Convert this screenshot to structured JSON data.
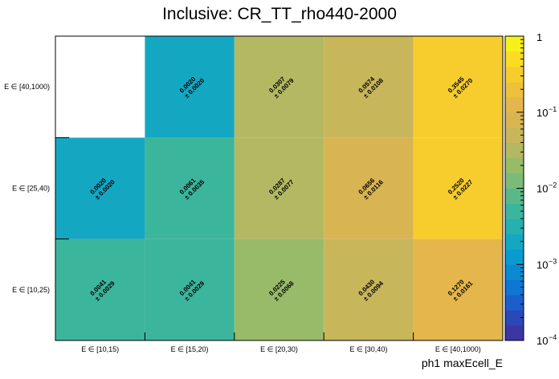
{
  "chart_data": {
    "type": "heatmap",
    "title": "Inclusive: CR_TT_rho440-2000",
    "xlabel": "ph1 maxEcell_E",
    "ylabel": "",
    "x_categories": [
      "E ∈ [10,15)",
      "E ∈ [15,20)",
      "E ∈ [20,30)",
      "E ∈ [30,40)",
      "E ∈ [40,1000)"
    ],
    "y_categories": [
      "E ∈ [10,25)",
      "E ∈ [25,40)",
      "E ∈ [40,1000)"
    ],
    "values": [
      [
        0.0041,
        0.0041,
        0.0225,
        0.043,
        0.127
      ],
      [
        0.002,
        0.0061,
        0.0287,
        0.0656,
        0.252
      ],
      [
        null,
        0.002,
        0.0307,
        0.0574,
        0.3545
      ]
    ],
    "labels": [
      [
        "0.0041",
        "0.0041",
        "0.0225",
        "0.0430",
        "0.1270"
      ],
      [
        "0.0020",
        "0.0061",
        "0.0287",
        "0.0656",
        "0.2520"
      ],
      [
        "",
        "0.0020",
        "0.0307",
        "0.0574",
        "0.3545"
      ]
    ],
    "errors": [
      [
        "± 0.0029",
        "± 0.0029",
        "± 0.0068",
        "± 0.0094",
        "± 0.0161"
      ],
      [
        "± 0.0020",
        "± 0.0035",
        "± 0.0077",
        "± 0.0116",
        "± 0.0227"
      ],
      [
        "",
        "± 0.0020",
        "± 0.0079",
        "± 0.0108",
        "± 0.0270"
      ]
    ],
    "zscale": "log",
    "zlim": [
      0.0001,
      1
    ],
    "colorbar_ticks": [
      {
        "value": 1,
        "base": "1",
        "exp": ""
      },
      {
        "value": 0.1,
        "base": "10",
        "exp": "−1"
      },
      {
        "value": 0.01,
        "base": "10",
        "exp": "−2"
      },
      {
        "value": 0.001,
        "base": "10",
        "exp": "−3"
      },
      {
        "value": 0.0001,
        "base": "10",
        "exp": "−4"
      }
    ],
    "palette": [
      "#3b36a4",
      "#2a48b8",
      "#1a5fca",
      "#0f76d4",
      "#0b8ad4",
      "#099bcf",
      "#14a7c2",
      "#26b0b0",
      "#3cb59d",
      "#5ab888",
      "#7abb78",
      "#98bb6a",
      "#b2b962",
      "#c8b65b",
      "#d9b453",
      "#e4b64b",
      "#eec13c",
      "#f7cd2e",
      "#fbdc22",
      "#f8f01a"
    ]
  }
}
